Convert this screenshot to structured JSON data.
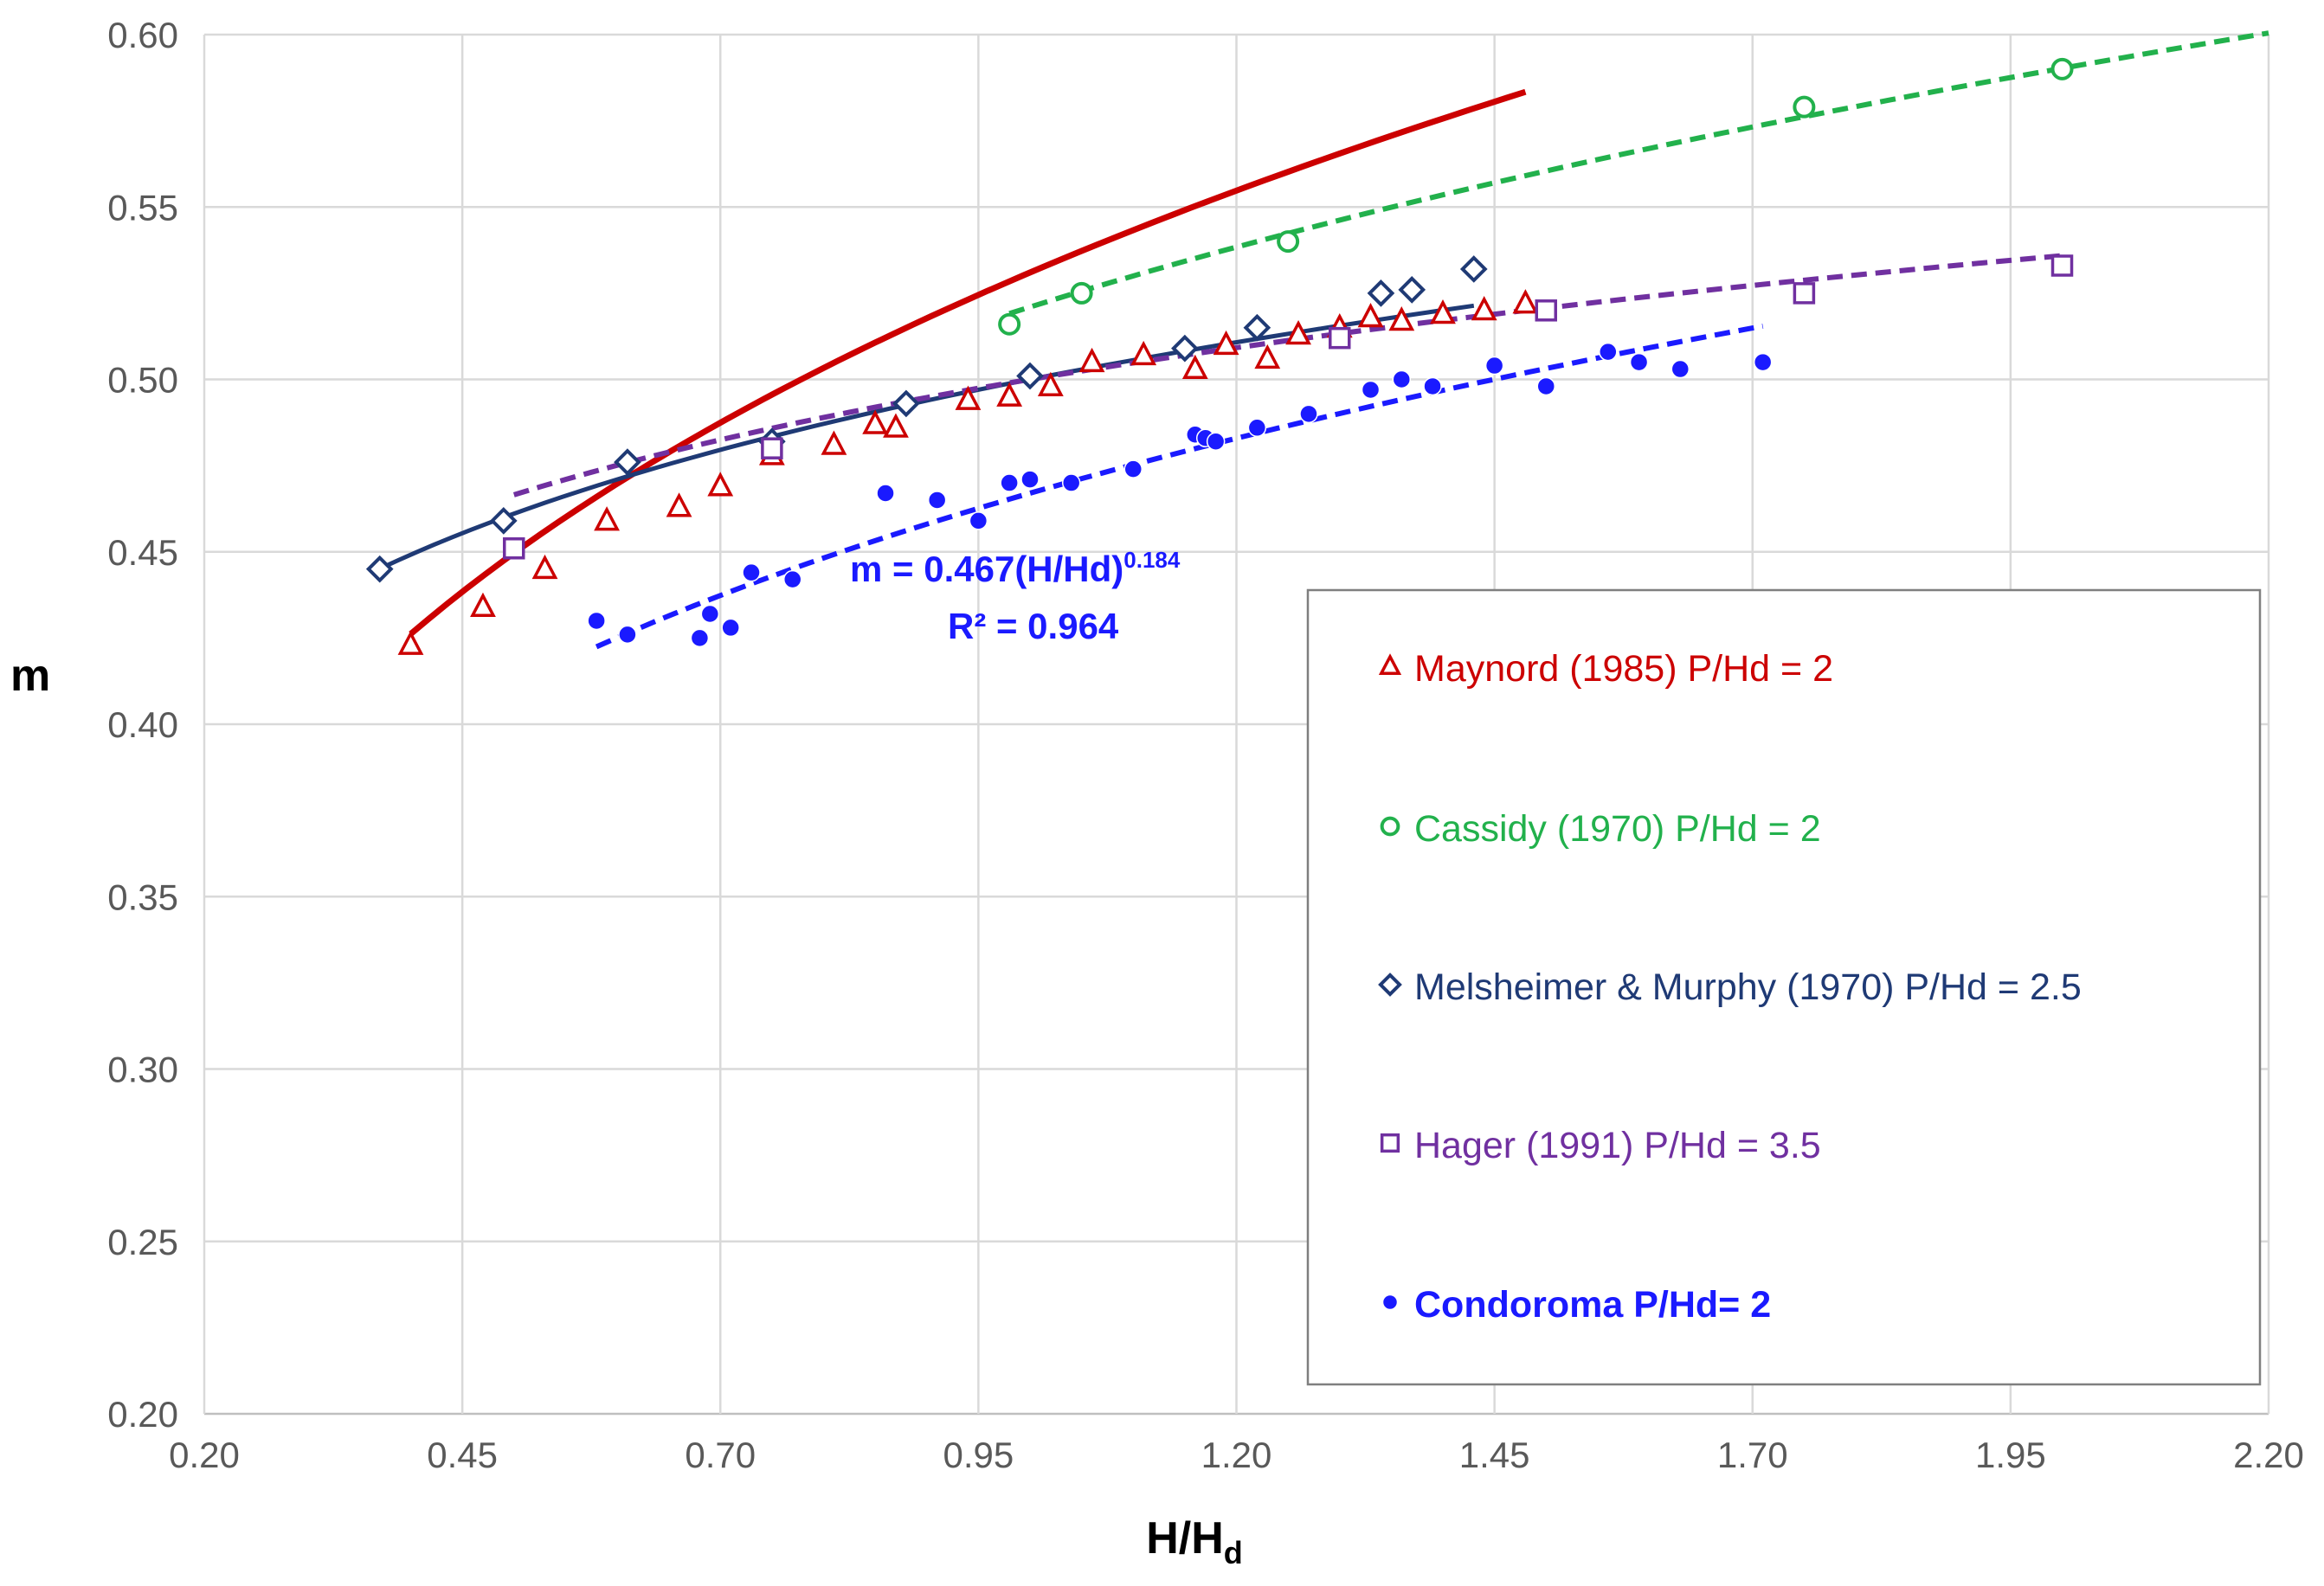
{
  "chart_data": {
    "type": "scatter",
    "title": "",
    "xlabel": "H/H",
    "xlabel_sub": "d",
    "ylabel": "m",
    "xlim": [
      0.2,
      2.2
    ],
    "ylim": [
      0.2,
      0.6
    ],
    "xticks": [
      0.2,
      0.45,
      0.7,
      0.95,
      1.2,
      1.45,
      1.7,
      1.95,
      2.2
    ],
    "xtick_labels": [
      "0.20",
      "0.45",
      "0.70",
      "0.95",
      "1.20",
      "1.45",
      "1.70",
      "1.95",
      "2.20"
    ],
    "yticks": [
      0.2,
      0.25,
      0.3,
      0.35,
      0.4,
      0.45,
      0.5,
      0.55,
      0.6
    ],
    "ytick_labels": [
      "0.20",
      "0.25",
      "0.30",
      "0.35",
      "0.40",
      "0.45",
      "0.50",
      "0.55",
      "0.60"
    ],
    "grid": true,
    "legend_position": "bottom-right",
    "annotation": {
      "equation": "m = 0.467(H/Hd)",
      "exponent": "0.184",
      "r2": "R² = 0.964"
    },
    "series": [
      {
        "name": "Maynord (1985) P/Hd = 2",
        "color": "#cc0000",
        "marker": "triangle",
        "bold": false,
        "x": [
          0.4,
          0.47,
          0.53,
          0.59,
          0.66,
          0.7,
          0.75,
          0.81,
          0.85,
          0.87,
          0.94,
          0.98,
          1.02,
          1.06,
          1.11,
          1.16,
          1.19,
          1.23,
          1.26,
          1.3,
          1.33,
          1.36,
          1.4,
          1.44,
          1.48
        ],
        "y": [
          0.423,
          0.434,
          0.445,
          0.459,
          0.463,
          0.469,
          0.478,
          0.481,
          0.487,
          0.486,
          0.494,
          0.495,
          0.498,
          0.505,
          0.507,
          0.503,
          0.51,
          0.506,
          0.513,
          0.515,
          0.518,
          0.517,
          0.519,
          0.52,
          0.522
        ],
        "trend": {
          "style": "solid",
          "a": 0.531,
          "b": 0.24,
          "x_start": 0.4,
          "x_end": 1.48
        }
      },
      {
        "name": "Cassidy (1970) P/Hd = 2",
        "color": "#22b14c",
        "marker": "circle-open",
        "bold": false,
        "x": [
          0.98,
          1.05,
          1.25,
          1.75,
          2.0
        ],
        "y": [
          0.516,
          0.525,
          0.54,
          0.579,
          0.59
        ],
        "trend": {
          "style": "dashed",
          "a": 0.521,
          "b": 0.18,
          "x_start": 0.98,
          "x_end": 2.2
        }
      },
      {
        "name": "Melsheimer & Murphy (1970) P/Hd = 2.5",
        "color": "#1f3a75",
        "marker": "diamond",
        "bold": false,
        "x": [
          0.37,
          0.49,
          0.61,
          0.75,
          0.88,
          1.0,
          1.15,
          1.22,
          1.34,
          1.37,
          1.43
        ],
        "y": [
          0.445,
          0.459,
          0.476,
          0.482,
          0.493,
          0.501,
          0.509,
          0.515,
          0.525,
          0.526,
          0.532
        ],
        "trend": {
          "style": "solid",
          "a": 0.5,
          "b": 0.117,
          "x_start": 0.37,
          "x_end": 1.43
        }
      },
      {
        "name": "Hager (1991) P/Hd = 3.5",
        "color": "#7030a0",
        "marker": "square",
        "bold": false,
        "x": [
          0.5,
          0.75,
          1.3,
          1.5,
          1.75,
          2.0
        ],
        "y": [
          0.451,
          0.48,
          0.512,
          0.52,
          0.525,
          0.533
        ],
        "trend": {
          "style": "dashed",
          "a": 0.5,
          "b": 0.1,
          "x_start": 0.5,
          "x_end": 2.0
        }
      },
      {
        "name": "Condoroma P/Hd= 2",
        "color": "#1a1aff",
        "marker": "dot",
        "bold": true,
        "x": [
          0.58,
          0.61,
          0.68,
          0.69,
          0.71,
          0.73,
          0.77,
          0.86,
          0.91,
          0.95,
          0.98,
          1.0,
          1.04,
          1.1,
          1.16,
          1.17,
          1.18,
          1.22,
          1.27,
          1.33,
          1.36,
          1.39,
          1.45,
          1.5,
          1.56,
          1.59,
          1.63,
          1.71
        ],
        "y": [
          0.43,
          0.426,
          0.425,
          0.432,
          0.428,
          0.444,
          0.442,
          0.467,
          0.465,
          0.459,
          0.47,
          0.471,
          0.47,
          0.474,
          0.484,
          0.483,
          0.482,
          0.486,
          0.49,
          0.497,
          0.5,
          0.498,
          0.504,
          0.498,
          0.508,
          0.505,
          0.503,
          0.505
        ],
        "trend": {
          "style": "dashed",
          "a": 0.467,
          "b": 0.184,
          "x_start": 0.58,
          "x_end": 1.71
        }
      }
    ]
  }
}
